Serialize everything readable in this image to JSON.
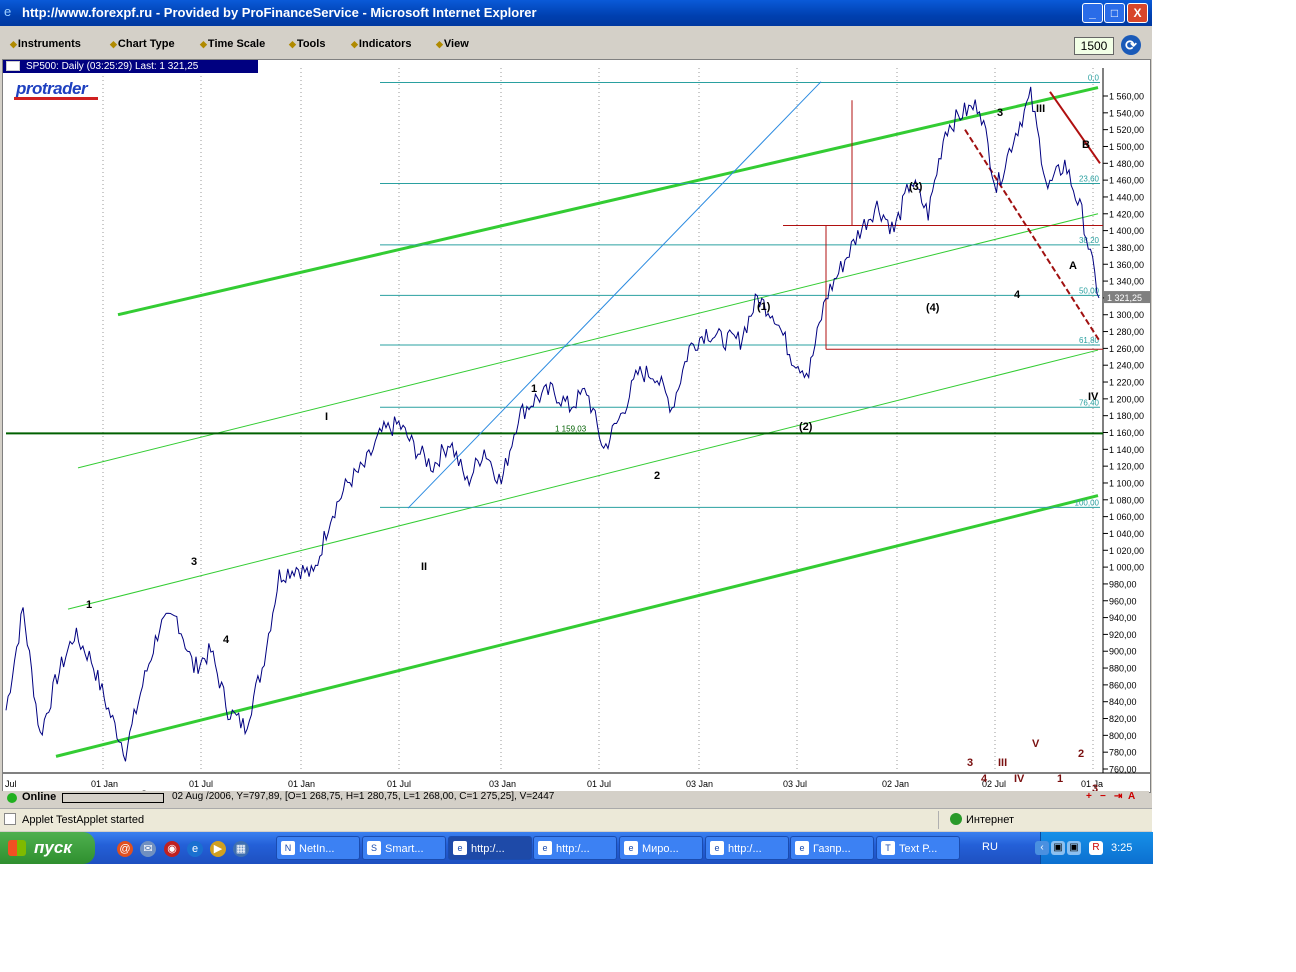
{
  "window": {
    "title": "http://www.forexpf.ru - Provided by ProFinanceService - Microsoft Internet Explorer",
    "minimize": "_",
    "maximize": "□",
    "close": "X"
  },
  "menu": {
    "items": [
      "Instruments",
      "Chart Type",
      "Time Scale",
      "Tools",
      "Indicators",
      "View"
    ],
    "period_value": "1500"
  },
  "chart_header": "SP500: Daily (03:25:29) Last: 1 321,25",
  "logo": "protrader",
  "status_row": {
    "online": "Online",
    "bar_info": "02 Aug /2006, Y=797,89, [O=1 268,75, H=1 280,75, L=1 268,00, C=1 275,25], V=2447"
  },
  "ie_status": {
    "applet": "Applet TestApplet started",
    "zone": "Интернет"
  },
  "taskbar": {
    "start": "пуск",
    "tasks": [
      "NetIn...",
      "Smart...",
      "http:/...",
      "http:/...",
      "Миро...",
      "http:/...",
      "Газпр...",
      "Text P..."
    ],
    "active_task": 2,
    "language": "RU",
    "clock": "3:25"
  },
  "chart_data": {
    "type": "line",
    "instrument": "SP500",
    "timeframe": "Daily",
    "last_price": "1 321,25",
    "ylim": [
      760,
      1570
    ],
    "y_tick_labels": [
      "1 560,00",
      "1 540,00",
      "1 520,00",
      "1 500,00",
      "1 480,00",
      "1 460,00",
      "1 440,00",
      "1 420,00",
      "1 400,00",
      "1 380,00",
      "1 360,00",
      "1 340,00",
      "1 320,00",
      "1 300,00",
      "1 280,00",
      "1 260,00",
      "1 240,00",
      "1 220,00",
      "1 200,00",
      "1 180,00",
      "1 160,00",
      "1 140,00",
      "1 120,00",
      "1 100,00",
      "1 080,00",
      "1 060,00",
      "1 040,00",
      "1 020,00",
      "1 000,00",
      "980,00",
      "960,00",
      "940,00",
      "920,00",
      "900,00",
      "880,00",
      "860,00",
      "840,00",
      "820,00",
      "800,00",
      "780,00",
      "760,00"
    ],
    "x_tick_labels": [
      "Jul",
      "01 Jan",
      "01 Jul",
      "01 Jan",
      "01 Jul",
      "03 Jan",
      "01 Jul",
      "03 Jan",
      "03 Jul",
      "02 Jan",
      "02 Jul",
      "01 Ja"
    ],
    "series": [
      {
        "values": [
          830,
          950,
          800,
          870,
          920,
          890,
          830,
          780,
          860,
          930,
          940,
          880,
          900,
          830,
          810,
          880,
          990,
          1000,
          990,
          1060,
          1100,
          1120,
          1160,
          1170,
          1140,
          1120,
          1150,
          1100,
          1140,
          1100,
          1180,
          1200,
          1210,
          1190,
          1210,
          1140,
          1180,
          1230,
          1230,
          1190,
          1260,
          1280,
          1270,
          1270,
          1320,
          1300,
          1250,
          1230,
          1320,
          1360,
          1400,
          1430,
          1400,
          1460,
          1420,
          1520,
          1540,
          1550,
          1450,
          1510,
          1560,
          1450,
          1480,
          1420,
          1320
        ]
      }
    ],
    "fibonacci_levels": [
      {
        "label": "0,0",
        "value": 1576
      },
      {
        "label": "23,60",
        "value": 1456
      },
      {
        "label": "38,20",
        "value": 1383
      },
      {
        "label": "50,00",
        "value": 1323
      },
      {
        "label": "61,80",
        "value": 1264
      },
      {
        "label": "76,40",
        "value": 1190
      },
      {
        "label": "100,00",
        "value": 1071
      }
    ],
    "horizontal_line_label": "1 159,03",
    "wave_labels": [
      "1",
      "2",
      "3",
      "4",
      "I",
      "II",
      "1",
      "2",
      "(1)",
      "(2)",
      "(3)",
      "(4)",
      "3",
      "4",
      "III",
      "A",
      "B",
      "IV",
      "3",
      "III",
      "4",
      "IV",
      "V",
      "1",
      "2",
      "3"
    ],
    "grid": true
  },
  "colors": {
    "price_line": "#000080",
    "channel": "#33cc33",
    "fib": "#2aa0a0",
    "trend": "#b01010",
    "titlebar": "#0050d0"
  }
}
